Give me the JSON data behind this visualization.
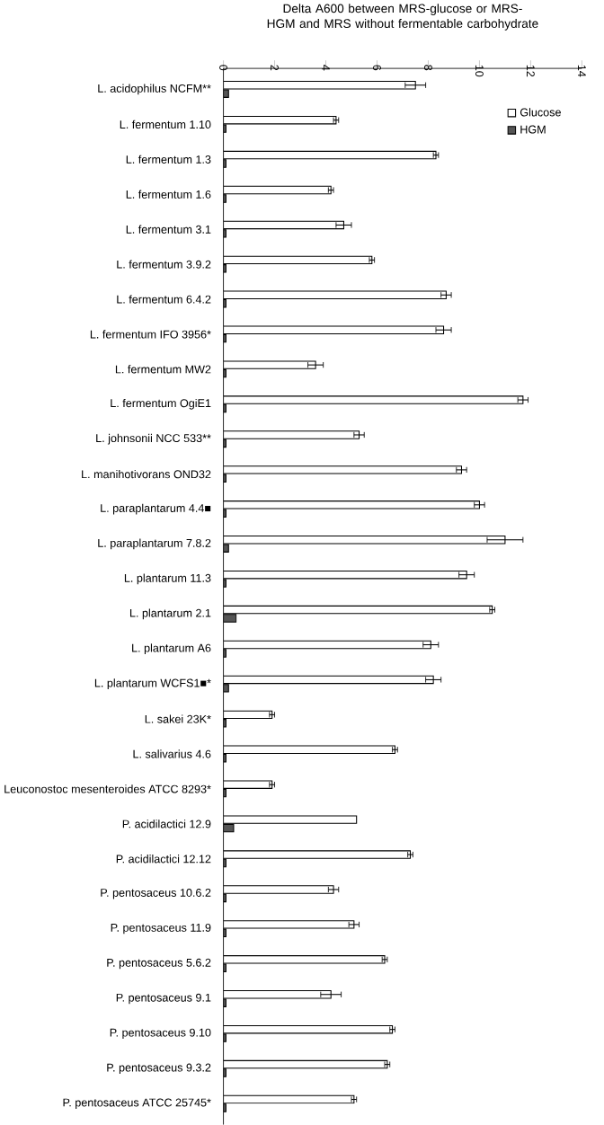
{
  "chart_data": {
    "type": "bar",
    "orientation": "horizontal",
    "title": "Delta A600 between MRS-glucose or MRS-HGM and MRS without fermentable carbohydrate",
    "categories": [
      "L. acidophilus NCFM**",
      "L. fermentum 1.10",
      "L. fermentum 1.3",
      "L. fermentum 1.6",
      "L. fermentum 3.1",
      "L. fermentum 3.9.2",
      "L. fermentum 6.4.2",
      "L. fermentum IFO 3956*",
      "L. fermentum MW2",
      "L. fermentum OgiE1",
      "L. johnsonii NCC 533**",
      "L. manihotivorans OND32",
      "L. paraplantarum 4.4■",
      "L. paraplantarum 7.8.2",
      "L. plantarum 11.3",
      "L. plantarum 2.1",
      "L. plantarum A6",
      "L. plantarum  WCFS1■*",
      "L. sakei 23K*",
      "L. salivarius 4.6",
      "Leuconostoc mesenteroides ATCC 8293*",
      "P. acidilactici 12.9",
      "P. acidilactici 12.12",
      "P. pentosaceus 10.6.2",
      "P. pentosaceus 11.9",
      "P. pentosaceus 5.6.2",
      "P. pentosaceus 9.1",
      "P. pentosaceus 9.10",
      "P. pentosaceus 9.3.2",
      "P. pentosaceus ATCC 25745*"
    ],
    "series": [
      {
        "name": "Glucose",
        "color": "#ffffff",
        "values": [
          7.5,
          4.4,
          8.3,
          4.2,
          4.7,
          5.8,
          8.7,
          8.6,
          3.6,
          11.7,
          5.3,
          9.3,
          10.0,
          11.0,
          9.5,
          10.5,
          8.1,
          8.2,
          1.9,
          6.7,
          1.9,
          5.2,
          7.3,
          4.3,
          5.1,
          6.3,
          4.2,
          6.6,
          6.4,
          5.1
        ],
        "errors": [
          0.4,
          0.1,
          0.1,
          0.1,
          0.3,
          0.1,
          0.2,
          0.3,
          0.3,
          0.2,
          0.2,
          0.2,
          0.2,
          0.7,
          0.3,
          0.1,
          0.3,
          0.3,
          0.1,
          0.1,
          0.1,
          null,
          0.1,
          0.2,
          0.2,
          0.1,
          0.4,
          0.1,
          0.1,
          0.1
        ]
      },
      {
        "name": "HGM",
        "color": "#555555",
        "values": [
          0.2,
          0.1,
          0.1,
          0.1,
          0.1,
          0.1,
          0.1,
          0.1,
          0.1,
          0.1,
          0.1,
          0.1,
          0.1,
          0.2,
          0.1,
          0.5,
          0.1,
          0.2,
          0.1,
          0.1,
          0.1,
          0.4,
          0.1,
          0.1,
          0.1,
          0.1,
          0.1,
          0.1,
          0.1,
          0.1
        ]
      }
    ],
    "xlim": [
      0,
      14
    ],
    "xticks": [
      0,
      2,
      4,
      6,
      8,
      10,
      12,
      14
    ],
    "legend": "top right"
  }
}
